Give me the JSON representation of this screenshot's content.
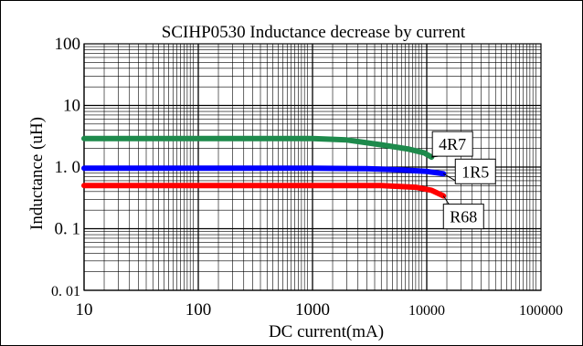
{
  "chart_data": {
    "type": "line",
    "title": "SCIHP0530 Inductance decrease by current",
    "xlabel": "DC current(mA)",
    "ylabel": "Inductance (uH)",
    "xscale": "log",
    "yscale": "log",
    "xlim": [
      10,
      100000
    ],
    "ylim": [
      0.01,
      100
    ],
    "xticks": [
      {
        "value": 10,
        "label": "10"
      },
      {
        "value": 100,
        "label": "100"
      },
      {
        "value": 1000,
        "label": "1000"
      },
      {
        "value": 10000,
        "label": "10000"
      },
      {
        "value": 100000,
        "label": "100000"
      }
    ],
    "yticks": [
      {
        "value": 0.01,
        "label": "0. 01"
      },
      {
        "value": 0.1,
        "label": "0. 1"
      },
      {
        "value": 1,
        "label": "1. 0"
      },
      {
        "value": 10,
        "label": "10"
      },
      {
        "value": 100,
        "label": "100"
      }
    ],
    "grid": true,
    "series": [
      {
        "name": "4R7",
        "color": "#1e8a4c",
        "points": [
          [
            10,
            2.9
          ],
          [
            100,
            2.9
          ],
          [
            1000,
            2.9
          ],
          [
            2000,
            2.75
          ],
          [
            4000,
            2.3
          ],
          [
            7000,
            1.95
          ],
          [
            9500,
            1.7
          ],
          [
            11000,
            1.45
          ]
        ]
      },
      {
        "name": "1R5",
        "color": "#0000ff",
        "points": [
          [
            10,
            0.96
          ],
          [
            100,
            0.96
          ],
          [
            1000,
            0.96
          ],
          [
            3000,
            0.94
          ],
          [
            6000,
            0.9
          ],
          [
            10000,
            0.85
          ],
          [
            14000,
            0.78
          ]
        ]
      },
      {
        "name": "R68",
        "color": "#ff0000",
        "points": [
          [
            10,
            0.5
          ],
          [
            100,
            0.5
          ],
          [
            1000,
            0.5
          ],
          [
            4000,
            0.5
          ],
          [
            8000,
            0.47
          ],
          [
            11000,
            0.42
          ],
          [
            14000,
            0.34
          ]
        ]
      }
    ]
  }
}
